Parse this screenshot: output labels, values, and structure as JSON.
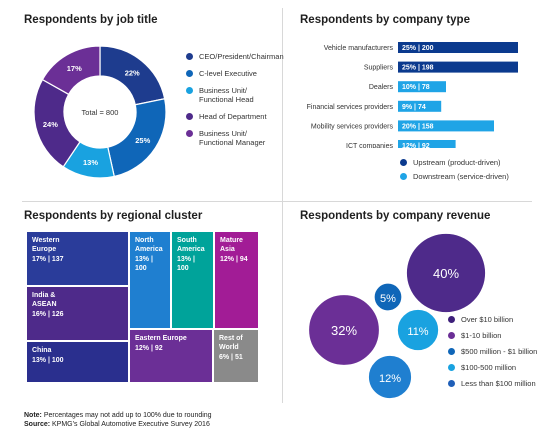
{
  "colors": {
    "navy": "#1e3c8e",
    "blue": "#0f66b8",
    "lightblue": "#19a2e0",
    "purple": "#4e2a8a",
    "violet": "#6b2f96",
    "teal": "#00a39a",
    "magenta": "#a21c96",
    "gray": "#8a8a8a",
    "bar_dark": "#0b3a8e",
    "bar_light": "#1fa4e6",
    "revenue_dark": "#3d1f7a"
  },
  "panels": {
    "job_title": "Respondents by job title",
    "company_type": "Respondents by company type",
    "regional": "Respondents by regional cluster",
    "revenue": "Respondents by company revenue"
  },
  "chart_data": [
    {
      "type": "pie",
      "title": "Respondents by job title",
      "center_label": "Total = 800",
      "slices": [
        {
          "name": "CEO/President/Chairman",
          "value": 22,
          "label": "22%",
          "color": "#1e3c8e"
        },
        {
          "name": "C-level Executive",
          "value": 25,
          "label": "25%",
          "color": "#0f66b8"
        },
        {
          "name": "Business Unit/\nFunctional Head",
          "value": 13,
          "label": "13%",
          "color": "#19a2e0"
        },
        {
          "name": "Head of Department",
          "value": 24,
          "label": "24%",
          "color": "#4e2a8a"
        },
        {
          "name": "Business Unit/\nFunctional Manager",
          "value": 17,
          "label": "17%",
          "color": "#6b2f96"
        }
      ]
    },
    {
      "type": "bar",
      "title": "Respondents by company type",
      "categories": [
        "Vehicle manufacturers",
        "Suppliers",
        "Dealers",
        "Financial services providers",
        "Mobility services providers",
        "ICT companies"
      ],
      "values": [
        25,
        25,
        10,
        9,
        20,
        12
      ],
      "counts": [
        200,
        198,
        78,
        74,
        158,
        92
      ],
      "labels": [
        "25% | 200",
        "25% | 198",
        "10% | 78",
        "9% | 74",
        "20% | 158",
        "12% | 92"
      ],
      "groups": [
        "upstream",
        "upstream",
        "downstream",
        "downstream",
        "downstream",
        "downstream"
      ],
      "legend": [
        {
          "key": "upstream",
          "name": "Upstream (product-driven)",
          "color": "#0b3a8e"
        },
        {
          "key": "downstream",
          "name": "Downstream (service-driven)",
          "color": "#1fa4e6"
        }
      ]
    },
    {
      "type": "heatmap",
      "title": "Respondents by regional cluster",
      "cells": [
        {
          "name": "Western\nEurope",
          "value": "17% | 137",
          "color": "#2a3c9a"
        },
        {
          "name": "India &\nASEAN",
          "value": "16% | 126",
          "color": "#4e2a8a"
        },
        {
          "name": "China",
          "value": "13% | 100",
          "color": "#2a2f8e"
        },
        {
          "name": "North\nAmerica",
          "value": "13% | 100",
          "color": "#1f7fd0"
        },
        {
          "name": "South\nAmerica",
          "value": "13% | 100",
          "color": "#00a39a"
        },
        {
          "name": "Mature\nAsia",
          "value": "12% | 94",
          "color": "#a21c96"
        },
        {
          "name": "Eastern Europe",
          "value": "12% | 92",
          "color": "#6b2f96"
        },
        {
          "name": "Rest of\nWorld",
          "value": "6% | 51",
          "color": "#8a8a8a"
        }
      ]
    },
    {
      "type": "scatter",
      "title": "Respondents by company revenue",
      "bubbles": [
        {
          "name": "Over $10 billion",
          "value": 40,
          "label": "40%",
          "color": "#4e2a8a"
        },
        {
          "name": "$1-10 billion",
          "value": 32,
          "label": "32%",
          "color": "#6b2f96"
        },
        {
          "name": "$500 million - $1 billion",
          "value": 5,
          "label": "5%",
          "color": "#0f66b8"
        },
        {
          "name": "$100-500 million",
          "value": 11,
          "label": "11%",
          "color": "#19a2e0"
        },
        {
          "name": "Less than $100 million",
          "value": 12,
          "label": "12%",
          "color": "#1f7fd0"
        }
      ],
      "legend": [
        {
          "name": "Over $10 billion",
          "color": "#3d1f7a"
        },
        {
          "name": "$1-10 billion",
          "color": "#6b2f96"
        },
        {
          "name": "$500 million - $1 billion",
          "color": "#0f66b8"
        },
        {
          "name": "$100-500 million",
          "color": "#19a2e0"
        },
        {
          "name": "Less than $100 million",
          "color": "#1f5fb8"
        }
      ]
    }
  ],
  "footer": {
    "note_label": "Note:",
    "note_text": " Percentages may not add up to 100% due to rounding",
    "source_label": "Source:",
    "source_text": " KPMG’s Global Automotive Executive Survey 2016"
  }
}
